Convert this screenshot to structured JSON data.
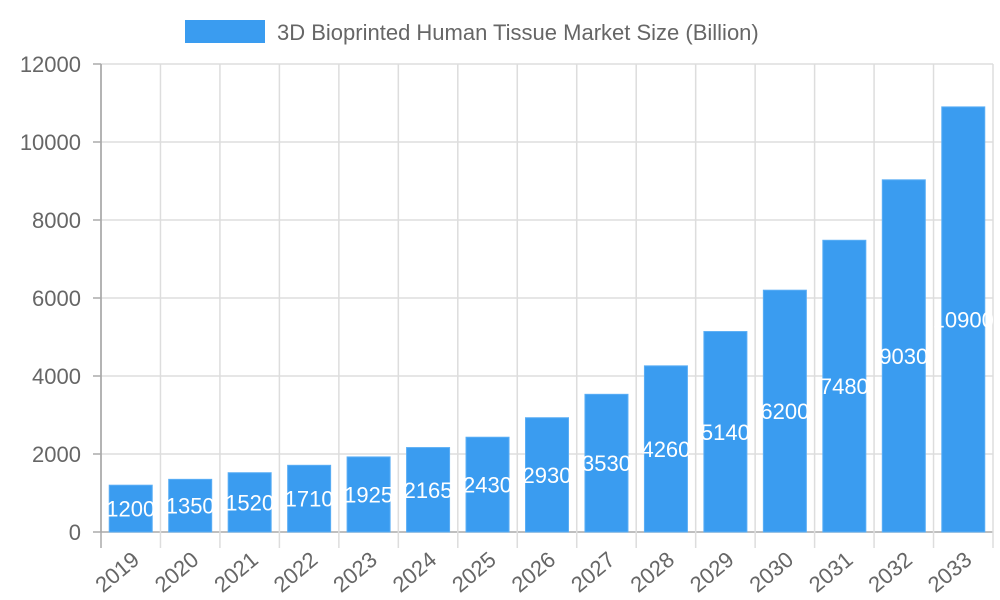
{
  "chart_data": {
    "type": "bar",
    "title": "",
    "xlabel": "",
    "ylabel": "",
    "categories": [
      "2019",
      "2020",
      "2021",
      "2022",
      "2023",
      "2024",
      "2025",
      "2026",
      "2027",
      "2028",
      "2029",
      "2030",
      "2031",
      "2032",
      "2033"
    ],
    "series": [
      {
        "name": "3D Bioprinted Human Tissue Market Size (Billion)",
        "values": [
          1200,
          1350,
          1520,
          1710,
          1925,
          2165,
          2430,
          2930,
          3530,
          4260,
          5140,
          6200,
          7480,
          9030,
          10900
        ],
        "color": "#3a9cf0"
      }
    ],
    "ylim": [
      0,
      12000
    ],
    "yticks": [
      0,
      2000,
      4000,
      6000,
      8000,
      10000,
      12000
    ],
    "grid": true,
    "legend_position": "top",
    "data_labels": true
  }
}
